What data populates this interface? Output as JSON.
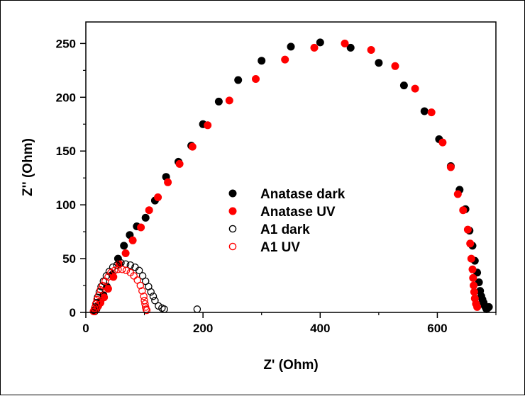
{
  "chart_data": {
    "type": "scatter",
    "xlabel": "Z' (Ohm)",
    "ylabel": "Z'' (Ohm)",
    "xlim": [
      0,
      700
    ],
    "ylim": [
      0,
      270
    ],
    "xticks": [
      0,
      200,
      400,
      600
    ],
    "yticks": [
      0,
      50,
      100,
      150,
      200,
      250
    ],
    "x_minor_step": 100,
    "y_minor_step": 25,
    "grid": false,
    "legend_position": "center",
    "series": [
      {
        "name": "Anatase dark",
        "marker": "filled-circle",
        "color": "#000000",
        "x": [
          15,
          18,
          21,
          25,
          30,
          36,
          45,
          55,
          65,
          75,
          87,
          102,
          118,
          137,
          158,
          180,
          200,
          227,
          260,
          300,
          350,
          400,
          452,
          500,
          543,
          578,
          603,
          623,
          638,
          648,
          655,
          660,
          664,
          668,
          671,
          673,
          675,
          677,
          679,
          681,
          683,
          684,
          686,
          688
        ],
        "y": [
          1,
          3,
          6,
          10,
          16,
          24,
          35,
          50,
          62,
          72,
          80,
          88,
          104,
          126,
          140,
          155,
          175,
          196,
          216,
          234,
          247,
          251,
          246,
          232,
          211,
          187,
          161,
          136,
          114,
          96,
          76,
          62,
          48,
          37,
          28,
          20,
          15,
          12,
          9,
          6,
          4,
          3,
          4,
          5
        ]
      },
      {
        "name": "Anatase UV",
        "marker": "filled-circle",
        "color": "#ff0000",
        "x": [
          14,
          17,
          21,
          25,
          31,
          38,
          47,
          57,
          68,
          80,
          94,
          108,
          123,
          140,
          160,
          182,
          208,
          245,
          290,
          340,
          390,
          442,
          487,
          528,
          562,
          590,
          609,
          623,
          635,
          644,
          652,
          656,
          658,
          660,
          661,
          662,
          663,
          664,
          666,
          668
        ],
        "y": [
          1,
          3,
          6,
          9,
          14,
          22,
          33,
          45,
          55,
          67,
          79,
          95,
          107,
          121,
          138,
          154,
          174,
          197,
          217,
          235,
          246,
          250,
          244,
          229,
          208,
          186,
          158,
          135,
          110,
          95,
          77,
          64,
          50,
          40,
          32,
          25,
          19,
          13,
          8,
          5
        ]
      },
      {
        "name": "A1 dark",
        "marker": "open-circle",
        "color": "#000000",
        "x": [
          14,
          16,
          18,
          20,
          23,
          26,
          30,
          35,
          40,
          46,
          53,
          60,
          68,
          76,
          84,
          91,
          97,
          102,
          107,
          111,
          115,
          118,
          124,
          130,
          134,
          190
        ],
        "y": [
          2,
          5,
          9,
          14,
          19,
          24,
          29,
          34,
          38,
          42,
          44,
          46,
          45,
          44,
          42,
          39,
          34,
          29,
          24,
          19,
          15,
          11,
          6,
          4,
          3,
          3
        ]
      },
      {
        "name": "A1 UV",
        "marker": "open-circle",
        "color": "#ff0000",
        "x": [
          13,
          15,
          17,
          19,
          22,
          25,
          29,
          33,
          38,
          43,
          49,
          55,
          62,
          69,
          76,
          82,
          88,
          93,
          96,
          99,
          100,
          101,
          102,
          103,
          104
        ],
        "y": [
          1,
          4,
          8,
          12,
          16,
          21,
          25,
          29,
          33,
          37,
          39,
          40,
          40,
          39,
          37,
          34,
          30,
          25,
          20,
          15,
          11,
          8,
          5,
          3,
          2
        ]
      }
    ]
  }
}
